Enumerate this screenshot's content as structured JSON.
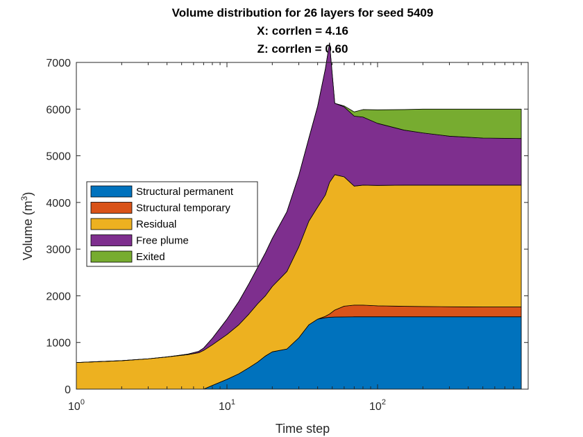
{
  "chart_data": {
    "type": "area",
    "title": [
      "Volume distribution for 26 layers for seed 5409",
      "X: corrlen = 4.16",
      "Z: corrlen = 0.60"
    ],
    "xlabel": "Time step",
    "ylabel": {
      "base": "Volume (m",
      "superscript": "3",
      "close": ")"
    },
    "x_scale": "log",
    "xlim": [
      1,
      1000
    ],
    "ylim": [
      0,
      7000
    ],
    "x_ticks": [
      {
        "value": 1,
        "base": "10",
        "exp": "0"
      },
      {
        "value": 10,
        "base": "10",
        "exp": "1"
      },
      {
        "value": 100,
        "base": "10",
        "exp": "2"
      }
    ],
    "y_ticks": [
      0,
      1000,
      2000,
      3000,
      4000,
      5000,
      6000,
      7000
    ],
    "grid": false,
    "legend_position": "center-left",
    "stacked": true,
    "x": [
      1,
      2,
      3,
      4,
      5.5,
      6.5,
      7,
      8,
      10,
      12,
      14,
      16,
      18,
      20,
      25,
      30,
      35,
      40,
      45,
      48,
      52,
      60,
      70,
      80,
      100,
      150,
      200,
      300,
      500,
      700,
      900
    ],
    "series": [
      {
        "name": "Structural permanent",
        "color": "#0072BD",
        "values": [
          0,
          0,
          0,
          0,
          0,
          0,
          0,
          80,
          210,
          330,
          460,
          580,
          710,
          800,
          860,
          1100,
          1380,
          1500,
          1530,
          1540,
          1545,
          1548,
          1550,
          1550,
          1550,
          1550,
          1550,
          1550,
          1550,
          1550,
          1550
        ]
      },
      {
        "name": "Structural temporary",
        "color": "#D95319",
        "values": [
          0,
          0,
          0,
          0,
          0,
          0,
          0,
          0,
          0,
          0,
          0,
          0,
          0,
          0,
          0,
          0,
          0,
          0,
          30,
          70,
          150,
          230,
          250,
          250,
          235,
          225,
          220,
          215,
          210,
          210,
          210
        ]
      },
      {
        "name": "Residual",
        "color": "#EDB120",
        "values": [
          570,
          610,
          650,
          690,
          740,
          780,
          830,
          870,
          960,
          1050,
          1150,
          1250,
          1290,
          1400,
          1660,
          1950,
          2220,
          2400,
          2600,
          2820,
          2900,
          2770,
          2550,
          2570,
          2580,
          2595,
          2600,
          2605,
          2610,
          2610,
          2610
        ]
      },
      {
        "name": "Free plume",
        "color": "#7E2F8E",
        "values": [
          0,
          0,
          0,
          0,
          10,
          30,
          50,
          140,
          330,
          500,
          650,
          780,
          920,
          1030,
          1280,
          1530,
          1780,
          2160,
          2700,
          2990,
          1530,
          1500,
          1500,
          1460,
          1330,
          1180,
          1120,
          1050,
          1010,
          1005,
          1000
        ]
      },
      {
        "name": "Exited",
        "color": "#77AC30",
        "values": [
          0,
          0,
          0,
          0,
          0,
          0,
          0,
          0,
          0,
          0,
          0,
          0,
          0,
          0,
          0,
          0,
          0,
          0,
          0,
          0,
          0,
          20,
          90,
          160,
          290,
          440,
          510,
          580,
          620,
          625,
          630
        ]
      }
    ]
  }
}
